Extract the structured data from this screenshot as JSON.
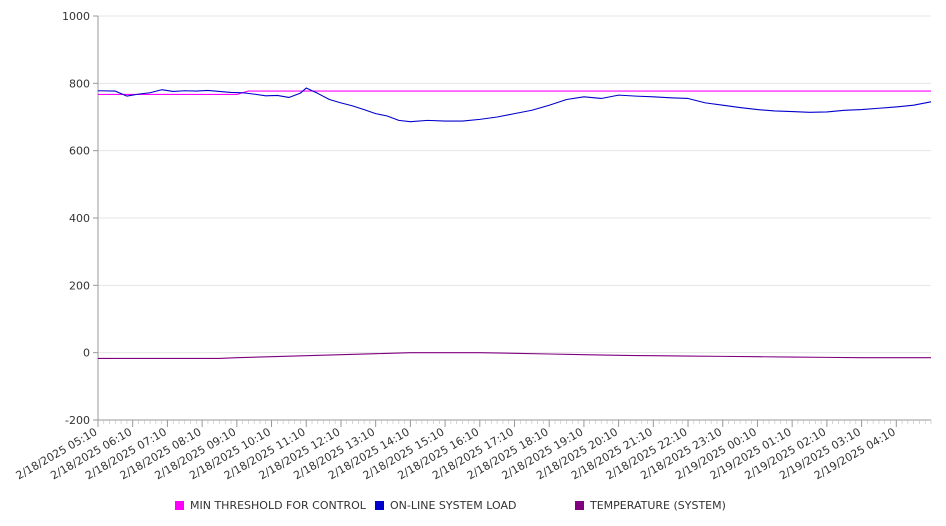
{
  "chart_data": {
    "type": "line",
    "title": "",
    "xlabel": "",
    "ylabel": "",
    "ylim": [
      -200,
      1000
    ],
    "yticks": [
      -200,
      0,
      200,
      400,
      600,
      800,
      1000
    ],
    "x_start": "2/18/2025 05:10",
    "x_end": "2/19/2025 05:10",
    "xtick_labels": [
      "2/18/2025 05:10",
      "2/18/2025 06:10",
      "2/18/2025 07:10",
      "2/18/2025 08:10",
      "2/18/2025 09:10",
      "2/18/2025 10:10",
      "2/18/2025 11:10",
      "2/18/2025 12:10",
      "2/18/2025 13:10",
      "2/18/2025 14:10",
      "2/18/2025 15:10",
      "2/18/2025 16:10",
      "2/18/2025 17:10",
      "2/18/2025 18:10",
      "2/18/2025 19:10",
      "2/18/2025 20:10",
      "2/18/2025 21:10",
      "2/18/2025 22:10",
      "2/18/2025 23:10",
      "2/19/2025 00:10",
      "2/19/2025 01:10",
      "2/19/2025 02:10",
      "2/19/2025 03:10",
      "2/19/2025 04:10"
    ],
    "grid": true,
    "legend_position": "bottom",
    "series": [
      {
        "name": "MIN THRESHOLD FOR CONTROL",
        "color": "#ff00ff",
        "x": [
          "2/18/2025 05:10",
          "2/18/2025 09:10",
          "2/18/2025 09:30",
          "2/19/2025 05:10"
        ],
        "values": [
          767,
          767,
          777,
          777
        ]
      },
      {
        "name": "ON-LINE SYSTEM LOAD",
        "color": "#0000cc",
        "x": [
          "2/18/2025 05:10",
          "2/18/2025 05:40",
          "2/18/2025 06:00",
          "2/18/2025 06:20",
          "2/18/2025 06:40",
          "2/18/2025 07:00",
          "2/18/2025 07:20",
          "2/18/2025 07:40",
          "2/18/2025 08:00",
          "2/18/2025 08:20",
          "2/18/2025 08:40",
          "2/18/2025 09:00",
          "2/18/2025 09:20",
          "2/18/2025 09:40",
          "2/18/2025 10:00",
          "2/18/2025 10:20",
          "2/18/2025 10:40",
          "2/18/2025 11:00",
          "2/18/2025 11:10",
          "2/18/2025 11:30",
          "2/18/2025 11:50",
          "2/18/2025 12:10",
          "2/18/2025 12:30",
          "2/18/2025 12:50",
          "2/18/2025 13:10",
          "2/18/2025 13:30",
          "2/18/2025 13:50",
          "2/18/2025 14:10",
          "2/18/2025 14:40",
          "2/18/2025 15:10",
          "2/18/2025 15:40",
          "2/18/2025 16:10",
          "2/18/2025 16:40",
          "2/18/2025 17:10",
          "2/18/2025 17:40",
          "2/18/2025 18:10",
          "2/18/2025 18:40",
          "2/18/2025 19:10",
          "2/18/2025 19:40",
          "2/18/2025 20:10",
          "2/18/2025 20:40",
          "2/18/2025 21:10",
          "2/18/2025 21:40",
          "2/18/2025 22:10",
          "2/18/2025 22:40",
          "2/18/2025 23:10",
          "2/18/2025 23:40",
          "2/19/2025 00:10",
          "2/19/2025 00:40",
          "2/19/2025 01:10",
          "2/19/2025 01:40",
          "2/19/2025 02:10",
          "2/19/2025 02:40",
          "2/19/2025 03:10",
          "2/19/2025 03:40",
          "2/19/2025 04:10",
          "2/19/2025 04:40",
          "2/19/2025 05:10"
        ],
        "values": [
          778,
          777,
          762,
          768,
          772,
          781,
          776,
          778,
          777,
          779,
          776,
          773,
          772,
          768,
          763,
          764,
          758,
          771,
          786,
          770,
          752,
          742,
          733,
          722,
          710,
          703,
          690,
          686,
          690,
          688,
          688,
          693,
          700,
          710,
          720,
          735,
          752,
          760,
          755,
          765,
          762,
          760,
          757,
          755,
          742,
          735,
          728,
          722,
          718,
          716,
          714,
          715,
          720,
          722,
          726,
          730,
          735,
          745
        ]
      },
      {
        "name": "TEMPERATURE (SYSTEM)",
        "color": "#800080",
        "x": [
          "2/18/2025 05:10",
          "2/18/2025 08:40",
          "2/18/2025 09:10",
          "2/18/2025 10:10",
          "2/18/2025 11:10",
          "2/18/2025 12:10",
          "2/18/2025 13:10",
          "2/18/2025 14:10",
          "2/18/2025 15:10",
          "2/18/2025 16:10",
          "2/18/2025 17:10",
          "2/18/2025 18:10",
          "2/18/2025 19:10",
          "2/18/2025 20:10",
          "2/18/2025 21:10",
          "2/18/2025 22:10",
          "2/18/2025 23:10",
          "2/19/2025 00:10",
          "2/19/2025 01:10",
          "2/19/2025 02:10",
          "2/19/2025 03:10",
          "2/19/2025 04:10",
          "2/19/2025 05:10"
        ],
        "values": [
          -17,
          -17,
          -15,
          -12,
          -9,
          -6,
          -3,
          0,
          0,
          0,
          -2,
          -4,
          -6,
          -8,
          -9,
          -10,
          -11,
          -12,
          -13,
          -14,
          -15,
          -15,
          -15
        ]
      }
    ]
  }
}
